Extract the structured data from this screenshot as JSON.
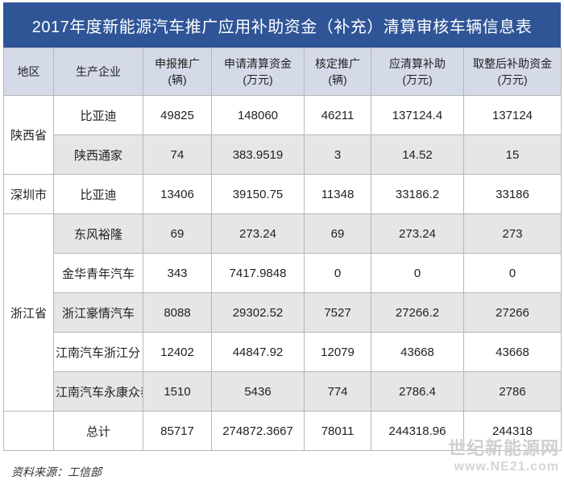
{
  "title": "2017年度新能源汽车推广应用补助资金（补充）清算审核车辆信息表",
  "headers": {
    "region": "地区",
    "company": "生产企业",
    "declared_1": "申报推广",
    "declared_2": "(辆)",
    "applied_1": "申请清算资金",
    "applied_2": "(万元)",
    "verified_1": "核定推广",
    "verified_2": "(辆)",
    "subsidy_1": "应清算补助",
    "subsidy_2": "(万元)",
    "rounded_1": "取整后补助资金",
    "rounded_2": "(万元)"
  },
  "regions": {
    "shaanxi": "陕西省",
    "shenzhen": "深圳市",
    "zhejiang": "浙江省"
  },
  "rows": [
    {
      "company": "比亚迪",
      "declared": "49825",
      "applied": "148060",
      "verified": "46211",
      "subsidy": "137124.4",
      "rounded": "137124"
    },
    {
      "company": "陕西通家",
      "declared": "74",
      "applied": "383.9519",
      "verified": "3",
      "subsidy": "14.52",
      "rounded": "15"
    },
    {
      "company": "比亚迪",
      "declared": "13406",
      "applied": "39150.75",
      "verified": "11348",
      "subsidy": "33186.2",
      "rounded": "33186"
    },
    {
      "company": "东风裕隆",
      "declared": "69",
      "applied": "273.24",
      "verified": "69",
      "subsidy": "273.24",
      "rounded": "273"
    },
    {
      "company": "金华青年汽车",
      "declared": "343",
      "applied": "7417.9848",
      "verified": "0",
      "subsidy": "0",
      "rounded": "0"
    },
    {
      "company": "浙江豪情汽车",
      "declared": "8088",
      "applied": "29302.52",
      "verified": "7527",
      "subsidy": "27266.2",
      "rounded": "27266"
    },
    {
      "company": "江南汽车浙江分",
      "declared": "12402",
      "applied": "44847.92",
      "verified": "12079",
      "subsidy": "43668",
      "rounded": "43668"
    },
    {
      "company": "江南汽车永康众泰",
      "declared": "1510",
      "applied": "5436",
      "verified": "774",
      "subsidy": "2786.4",
      "rounded": "2786"
    }
  ],
  "total": {
    "label": "总计",
    "declared": "85717",
    "applied": "274872.3667",
    "verified": "78011",
    "subsidy": "244318.96",
    "rounded": "244318"
  },
  "source": "资料来源：工信部",
  "watermark": {
    "name": "世纪新能源网",
    "url": "www.NE21.com"
  },
  "colors": {
    "header_bar": "#2f5597",
    "header_row": "#d4dae8",
    "alt_row": "#e6e6e6"
  }
}
